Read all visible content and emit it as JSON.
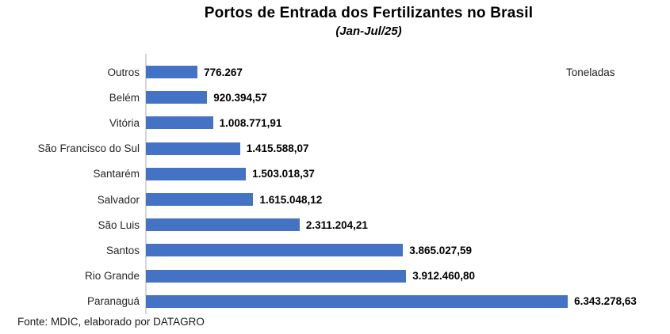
{
  "header": {
    "title": "Portos de Entrada dos Fertilizantes no Brasil",
    "subtitle": "(Jan-Jul/25)"
  },
  "chart": {
    "unit_label": "Toneladas",
    "bar_color": "#4472C4",
    "axis_color": "#d6d6d6"
  },
  "chart_data": {
    "type": "bar",
    "orientation": "horizontal",
    "title": "Portos de Entrada dos Fertilizantes no Brasil",
    "subtitle": "(Jan-Jul/25)",
    "ylabel": "",
    "xlabel": "Toneladas",
    "categories": [
      "Outros",
      "Belém",
      "Vitória",
      "São Francisco do Sul",
      "Santarém",
      "Salvador",
      "São Luis",
      "Santos",
      "Rio Grande",
      "Paranaguá"
    ],
    "values": [
      776267,
      920394.57,
      1008771.91,
      1415588.07,
      1503018.37,
      1615048.12,
      2311204.21,
      3865027.59,
      3912460.8,
      6343278.63
    ],
    "value_labels": [
      "776.267",
      "920.394,57",
      "1.008.771,91",
      "1.415.588,07",
      "1.503.018,37",
      "1.615.048,12",
      "2.311.204,21",
      "3.865.027,59",
      "3.912.460,80",
      "6.343.278,63"
    ],
    "xlim": [
      0,
      7880000
    ],
    "grid": false,
    "legend": false
  },
  "footer": {
    "source": "Fonte: MDIC, elaborado por DATAGRO"
  }
}
